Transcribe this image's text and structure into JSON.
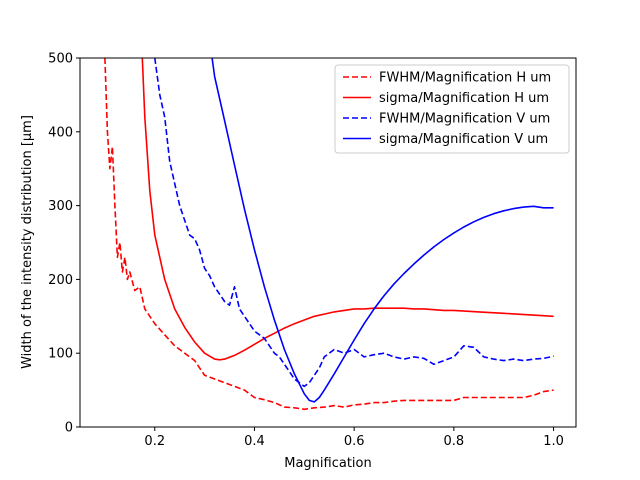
{
  "chart_data": {
    "type": "line",
    "title": "",
    "xlabel": "Magnification",
    "ylabel": "Width of the intensity distribution [μm]",
    "xlim": [
      0.05,
      1.045
    ],
    "ylim": [
      0,
      500
    ],
    "xticks": [
      0.2,
      0.4,
      0.6,
      0.8,
      1.0
    ],
    "xtick_labels": [
      "0.2",
      "0.4",
      "0.6",
      "0.8",
      "1.0"
    ],
    "yticks": [
      0,
      100,
      200,
      300,
      400,
      500
    ],
    "ytick_labels": [
      "0",
      "100",
      "200",
      "300",
      "400",
      "500"
    ],
    "grid": false,
    "legend_position": "top-right",
    "series": [
      {
        "name": "FWHM/Magnification H um",
        "color": "#ff0000",
        "dash": "dashed",
        "x": [
          0.1,
          0.105,
          0.11,
          0.115,
          0.12,
          0.125,
          0.13,
          0.135,
          0.14,
          0.145,
          0.15,
          0.16,
          0.17,
          0.18,
          0.19,
          0.2,
          0.22,
          0.24,
          0.26,
          0.28,
          0.3,
          0.32,
          0.34,
          0.36,
          0.38,
          0.4,
          0.42,
          0.44,
          0.46,
          0.48,
          0.5,
          0.52,
          0.54,
          0.56,
          0.58,
          0.6,
          0.62,
          0.64,
          0.66,
          0.68,
          0.7,
          0.72,
          0.74,
          0.76,
          0.78,
          0.8,
          0.82,
          0.84,
          0.86,
          0.88,
          0.9,
          0.92,
          0.94,
          0.96,
          0.98,
          1.0
        ],
        "y": [
          500,
          400,
          350,
          380,
          300,
          230,
          250,
          210,
          230,
          200,
          210,
          185,
          190,
          160,
          150,
          140,
          125,
          110,
          100,
          90,
          70,
          65,
          60,
          55,
          50,
          40,
          37,
          33,
          27,
          26,
          24,
          26,
          27,
          29,
          27,
          30,
          31,
          33,
          33,
          35,
          36,
          36,
          36,
          36,
          36,
          36,
          40,
          40,
          40,
          40,
          40,
          40,
          40,
          43,
          48,
          50
        ]
      },
      {
        "name": "sigma/Magnification H um",
        "color": "#ff0000",
        "dash": "solid",
        "x": [
          0.175,
          0.18,
          0.19,
          0.2,
          0.22,
          0.24,
          0.26,
          0.28,
          0.3,
          0.32,
          0.33,
          0.34,
          0.36,
          0.38,
          0.4,
          0.42,
          0.44,
          0.46,
          0.48,
          0.5,
          0.52,
          0.54,
          0.56,
          0.58,
          0.6,
          0.62,
          0.64,
          0.66,
          0.68,
          0.7,
          0.72,
          0.74,
          0.76,
          0.78,
          0.8,
          0.85,
          0.9,
          0.95,
          1.0
        ],
        "y": [
          500,
          420,
          320,
          260,
          200,
          160,
          135,
          115,
          100,
          92,
          91,
          92,
          97,
          104,
          112,
          120,
          127,
          134,
          140,
          145,
          150,
          153,
          156,
          158,
          160,
          160,
          161,
          161,
          161,
          161,
          160,
          160,
          159,
          158,
          158,
          156,
          154,
          152,
          150
        ]
      },
      {
        "name": "FWHM/Magnification V um",
        "color": "#0000ff",
        "dash": "dashed",
        "x": [
          0.2,
          0.21,
          0.22,
          0.23,
          0.24,
          0.25,
          0.26,
          0.27,
          0.28,
          0.29,
          0.3,
          0.31,
          0.32,
          0.33,
          0.34,
          0.35,
          0.36,
          0.37,
          0.38,
          0.39,
          0.4,
          0.41,
          0.42,
          0.43,
          0.44,
          0.45,
          0.46,
          0.47,
          0.48,
          0.49,
          0.5,
          0.51,
          0.52,
          0.53,
          0.54,
          0.55,
          0.56,
          0.58,
          0.6,
          0.62,
          0.64,
          0.66,
          0.68,
          0.7,
          0.72,
          0.74,
          0.76,
          0.78,
          0.8,
          0.82,
          0.84,
          0.86,
          0.88,
          0.9,
          0.92,
          0.94,
          0.96,
          0.98,
          1.0
        ],
        "y": [
          500,
          450,
          420,
          360,
          330,
          300,
          280,
          260,
          255,
          240,
          215,
          205,
          190,
          180,
          170,
          165,
          190,
          160,
          150,
          140,
          130,
          125,
          120,
          110,
          100,
          95,
          85,
          75,
          65,
          60,
          55,
          60,
          70,
          80,
          95,
          100,
          105,
          100,
          105,
          95,
          98,
          100,
          95,
          92,
          95,
          93,
          85,
          90,
          95,
          110,
          108,
          95,
          92,
          90,
          92,
          90,
          92,
          93,
          96
        ]
      },
      {
        "name": "sigma/Magnification V um",
        "color": "#0000ff",
        "dash": "solid",
        "x": [
          0.315,
          0.32,
          0.34,
          0.36,
          0.38,
          0.4,
          0.42,
          0.44,
          0.46,
          0.48,
          0.5,
          0.51,
          0.52,
          0.53,
          0.54,
          0.56,
          0.58,
          0.6,
          0.62,
          0.64,
          0.66,
          0.68,
          0.7,
          0.72,
          0.74,
          0.76,
          0.78,
          0.8,
          0.82,
          0.84,
          0.86,
          0.88,
          0.9,
          0.92,
          0.94,
          0.96,
          0.98,
          1.0
        ],
        "y": [
          500,
          475,
          415,
          355,
          295,
          240,
          190,
          145,
          105,
          72,
          45,
          36,
          34,
          40,
          50,
          72,
          95,
          118,
          140,
          160,
          178,
          194,
          208,
          221,
          233,
          244,
          254,
          263,
          271,
          278,
          284,
          289,
          293,
          296,
          298,
          299,
          297,
          297
        ]
      }
    ]
  }
}
